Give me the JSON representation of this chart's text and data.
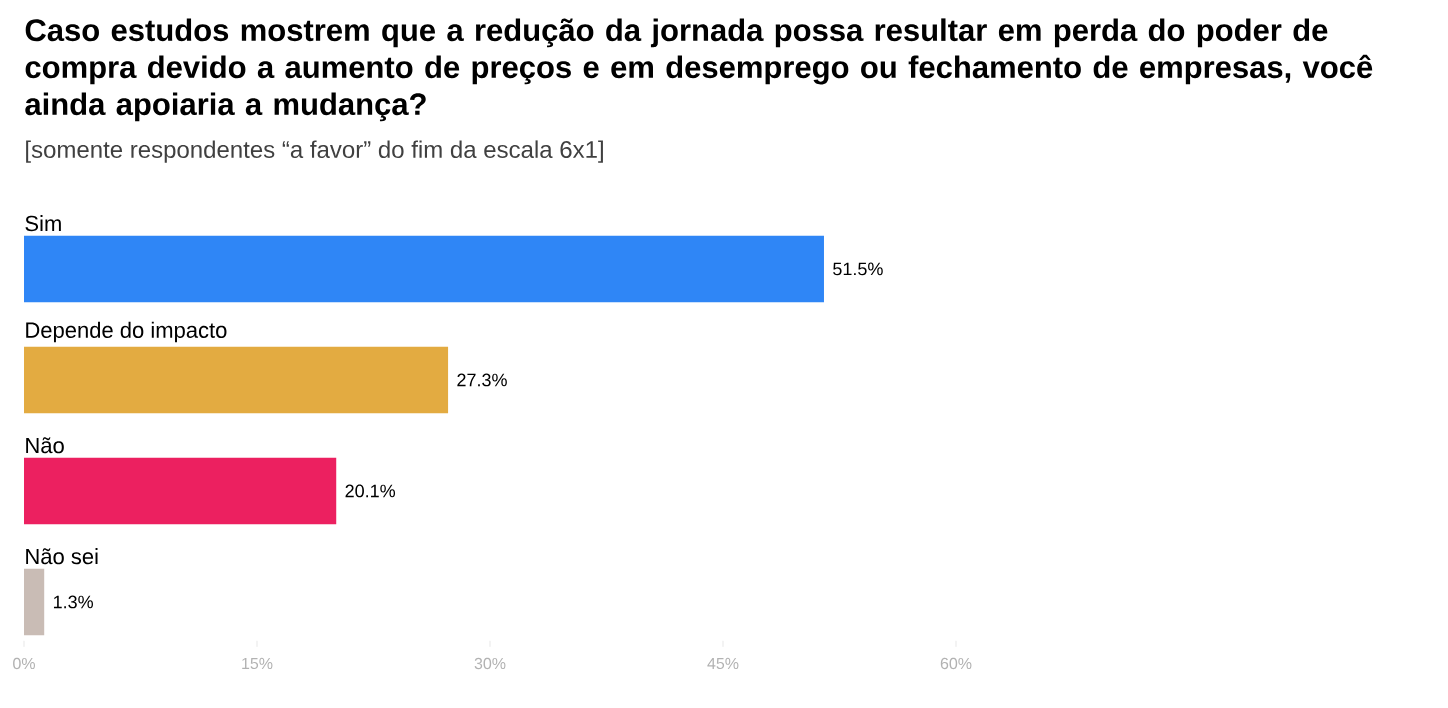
{
  "chart_data": {
    "type": "bar",
    "orientation": "horizontal",
    "title": "Caso estudos mostrem que a redução da jornada possa resultar em perda do poder de compra devido a aumento de preços e em desemprego ou fechamento de empresas, você ainda apoiaria a mudança?",
    "subtitle": "[somente respondentes “a favor” do fim da escala 6x1]",
    "categories": [
      "Sim",
      "Depende do impacto",
      "Não",
      "Não sei"
    ],
    "values": [
      51.5,
      27.3,
      20.1,
      1.3
    ],
    "value_labels": [
      "51.5%",
      "27.3%",
      "20.1%",
      "1.3%"
    ],
    "colors": [
      "#2f86f6",
      "#e3ab41",
      "#ec2060",
      "#c9bcb5"
    ],
    "xlim": [
      0,
      60
    ],
    "xticks": [
      {
        "value": 0,
        "label": "0%"
      },
      {
        "value": 15,
        "label": "15%"
      },
      {
        "value": 30,
        "label": "30%"
      },
      {
        "value": 45,
        "label": "45%"
      },
      {
        "value": 60,
        "label": "60%"
      }
    ],
    "grid": false
  }
}
